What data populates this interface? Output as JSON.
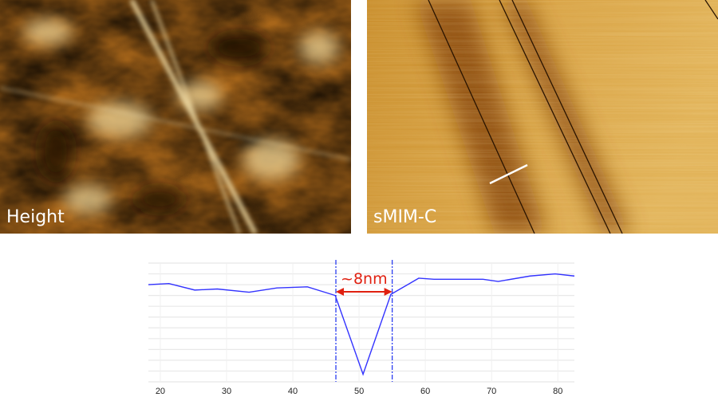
{
  "panels": [
    {
      "label": "Height"
    },
    {
      "label": "sMIM-C"
    }
  ],
  "colors": {
    "afm_dark": "#3a1c04",
    "afm_mid": "#a8661a",
    "afm_light": "#f3dc9c",
    "smim_base": "#c88f2c",
    "profile_line": "#3333ff",
    "marker_lines": "#2b3df0",
    "annotation": "#e02010",
    "scan_line": "#ffffff"
  },
  "chart_data": {
    "type": "line",
    "title": "",
    "xlabel": "",
    "ylabel": "",
    "xlim": [
      18.2,
      82.5
    ],
    "ylim": [
      0,
      11
    ],
    "x_ticks": [
      20,
      30,
      40,
      50,
      60,
      70,
      80
    ],
    "y_ticks_labeled": false,
    "grid": true,
    "series": [
      {
        "x": [
          18.2,
          21.3,
          25.2,
          28.6,
          33.4,
          37.6,
          42.2,
          46.4,
          50.6,
          54.8,
          59.0,
          61.3,
          68.7,
          71.0,
          75.8,
          79.6,
          82.5
        ],
        "y": [
          9.0,
          9.1,
          8.5,
          8.6,
          8.3,
          8.7,
          8.8,
          8.0,
          0.7,
          8.1,
          9.6,
          9.5,
          9.5,
          9.3,
          9.8,
          10.0,
          9.8
        ]
      }
    ],
    "vertical_markers": [
      46.5,
      55.0
    ],
    "annotation": {
      "text": "~8nm",
      "from": 46.5,
      "to": 55.0
    }
  }
}
